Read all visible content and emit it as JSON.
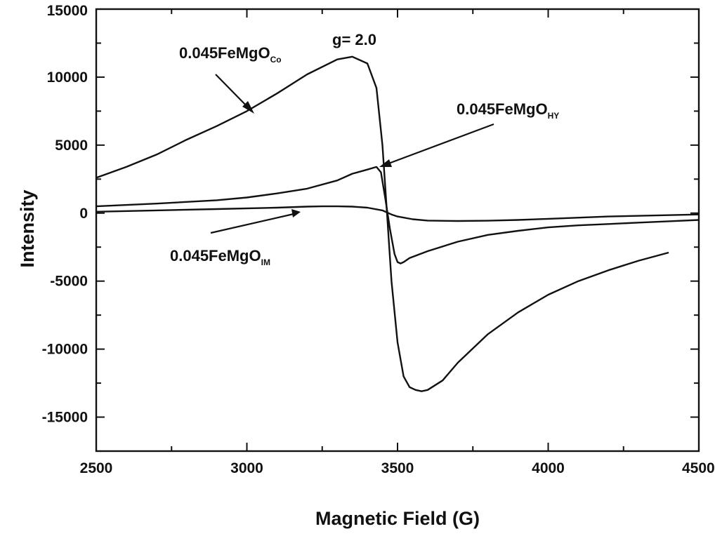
{
  "chart_data": {
    "type": "line",
    "title": "",
    "xlabel": "Magnetic Field (G)",
    "ylabel": "Intensity",
    "xlim": [
      2500,
      4500
    ],
    "ylim": [
      -17500,
      15000
    ],
    "x_ticks": [
      2500,
      3000,
      3500,
      4000,
      4500
    ],
    "y_ticks": [
      -15000,
      -10000,
      -5000,
      0,
      5000,
      10000,
      15000
    ],
    "grid": false,
    "legend": "none",
    "annotations": [
      {
        "text": "g= 2.0"
      },
      {
        "base": "0.045FeMgO",
        "sub": "Co",
        "series": 0
      },
      {
        "base": "0.045FeMgO",
        "sub": "HY",
        "series": 1
      },
      {
        "base": "0.045FeMgO",
        "sub": "IM",
        "series": 2
      }
    ],
    "series": [
      {
        "x": [
          2500,
          2600,
          2700,
          2800,
          2900,
          3000,
          3100,
          3200,
          3300,
          3350,
          3400,
          3430,
          3450,
          3465,
          3480,
          3500,
          3520,
          3540,
          3560,
          3580,
          3600,
          3650,
          3700,
          3800,
          3900,
          4000,
          4100,
          4200,
          4300,
          4400
        ],
        "y": [
          2600,
          3400,
          4300,
          5400,
          6400,
          7500,
          8800,
          10200,
          11300,
          11500,
          11000,
          9200,
          5000,
          0,
          -5000,
          -9500,
          -12000,
          -12800,
          -13000,
          -13100,
          -13000,
          -12300,
          -11000,
          -8900,
          -7300,
          -6000,
          -5000,
          -4200,
          -3500,
          -2900
        ]
      },
      {
        "x": [
          2500,
          2700,
          2900,
          3000,
          3100,
          3200,
          3300,
          3350,
          3400,
          3430,
          3445,
          3460,
          3475,
          3490,
          3500,
          3510,
          3520,
          3540,
          3600,
          3700,
          3800,
          3900,
          4000,
          4100,
          4200,
          4300,
          4400,
          4500
        ],
        "y": [
          500,
          700,
          950,
          1150,
          1450,
          1800,
          2400,
          2900,
          3200,
          3400,
          3000,
          1000,
          -1200,
          -3000,
          -3600,
          -3700,
          -3600,
          -3300,
          -2800,
          -2100,
          -1600,
          -1300,
          -1050,
          -900,
          -800,
          -700,
          -600,
          -500
        ]
      },
      {
        "x": [
          2500,
          2700,
          2900,
          3100,
          3200,
          3250,
          3300,
          3350,
          3400,
          3450,
          3480,
          3500,
          3550,
          3600,
          3700,
          3800,
          3900,
          4000,
          4200,
          4500
        ],
        "y": [
          100,
          200,
          300,
          400,
          480,
          500,
          500,
          480,
          400,
          200,
          -100,
          -250,
          -450,
          -550,
          -580,
          -560,
          -500,
          -420,
          -250,
          -100
        ]
      }
    ]
  }
}
